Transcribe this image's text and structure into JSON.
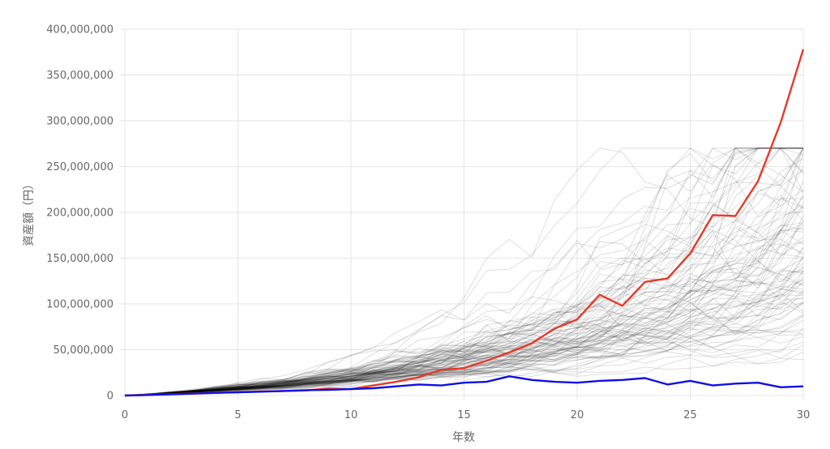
{
  "chart_data": {
    "type": "line",
    "xlabel": "年数",
    "ylabel": "資産額（円）",
    "xlim": [
      0,
      30
    ],
    "ylim": [
      0,
      400000000
    ],
    "x_ticks": [
      "0",
      "5",
      "10",
      "15",
      "20",
      "25",
      "30"
    ],
    "y_ticks": [
      "0",
      "50,000,000",
      "100,000,000",
      "150,000,000",
      "200,000,000",
      "250,000,000",
      "300,000,000",
      "350,000,000",
      "400,000,000"
    ],
    "grid": true,
    "x": [
      0,
      1,
      2,
      3,
      4,
      5,
      6,
      7,
      8,
      9,
      10,
      11,
      12,
      13,
      14,
      15,
      16,
      17,
      18,
      19,
      20,
      21,
      22,
      23,
      24,
      25,
      26,
      27,
      28,
      29,
      30
    ],
    "highlight_series": [
      {
        "color": "#e8392a",
        "values": [
          0,
          800000,
          1500000,
          2200000,
          3000000,
          3600000,
          4500000,
          5000000,
          5500000,
          7500000,
          7000000,
          11000000,
          15000000,
          20000000,
          28000000,
          30000000,
          38000000,
          47000000,
          57000000,
          73000000,
          83000000,
          110000000,
          98000000,
          124000000,
          128000000,
          155000000,
          197000000,
          196000000,
          234000000,
          298000000,
          378000000
        ]
      },
      {
        "color": "#1010e0",
        "values": [
          0,
          500000,
          1200000,
          2000000,
          2800000,
          3500000,
          4200000,
          5000000,
          5800000,
          6200000,
          7000000,
          8000000,
          10000000,
          12000000,
          11000000,
          14000000,
          15000000,
          21000000,
          17000000,
          15000000,
          14000000,
          16000000,
          17000000,
          19000000,
          12000000,
          16000000,
          11000000,
          13000000,
          14000000,
          9000000,
          10000000
        ]
      }
    ],
    "simulation_paths": {
      "color": "#000000",
      "opacity": 0.13,
      "count": 100,
      "median_final_value": 85000000,
      "max_final_value": 270000000
    }
  }
}
